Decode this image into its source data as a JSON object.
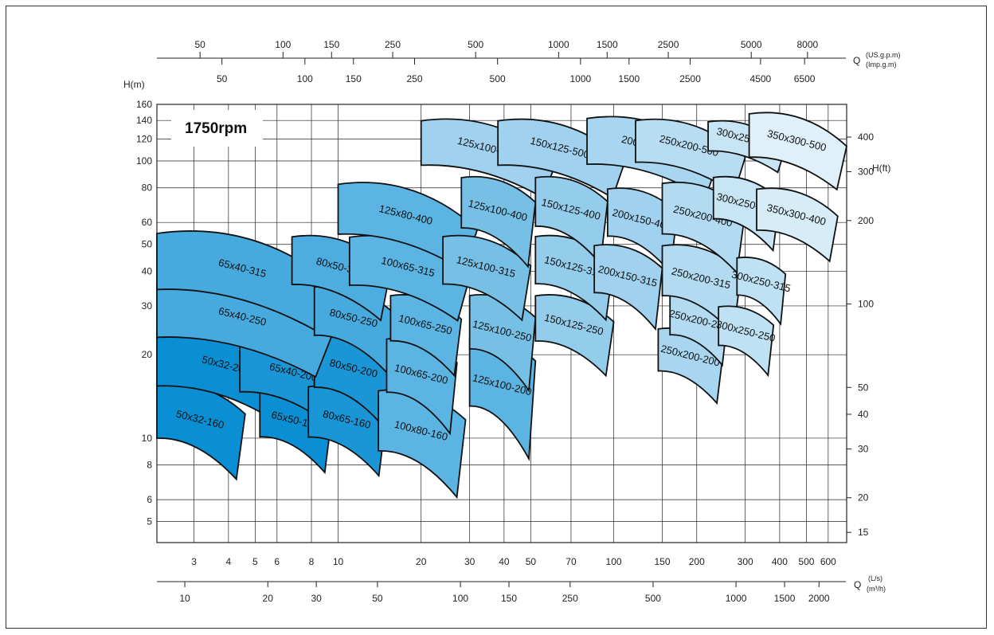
{
  "chart_data": {
    "type": "pump-selection",
    "speed_label": "1750rpm",
    "x_axis": {
      "label": "Q",
      "unit_top": "(L/s)",
      "unit_bottom": "(m³/h)",
      "scale": "log",
      "range_ls": [
        2.2,
        700
      ],
      "ticks_ls": [
        "3",
        "4",
        "5",
        "6",
        "8",
        "10",
        "20",
        "30",
        "40",
        "50",
        "70",
        "100",
        "150",
        "200",
        "300",
        "400",
        "500",
        "600"
      ],
      "ticks_m3h": [
        "10",
        "20",
        "30",
        "50",
        "100",
        "150",
        "250",
        "500",
        "1000",
        "1500",
        "2000"
      ]
    },
    "top_axis": {
      "label": "Q",
      "unit_top": "(US.g.p.m)",
      "unit_bottom": "(Imp.g.m)",
      "ticks_usgpm": [
        "50",
        "100",
        "150",
        "250",
        "500",
        "1000",
        "1500",
        "2500",
        "5000",
        "8000"
      ],
      "ticks_impgm": [
        "50",
        "100",
        "150",
        "250",
        "500",
        "1000",
        "1500",
        "2500",
        "4500",
        "6500"
      ]
    },
    "y_axis": {
      "label": "H(m)",
      "scale": "log",
      "range": [
        4.2,
        160
      ],
      "ticks": [
        "5",
        "6",
        "8",
        "10",
        "20",
        "30",
        "40",
        "50",
        "60",
        "80",
        "100",
        "120",
        "140",
        "160"
      ]
    },
    "y2_axis": {
      "label": "H(ft)",
      "ticks": [
        "15",
        "20",
        "30",
        "40",
        "50",
        "100",
        "200",
        "300",
        "400"
      ]
    },
    "grid": true,
    "models": [
      {
        "name": "50x32-160",
        "q": [
          2.2,
          4.6
        ],
        "h": [
          7.2,
          15.8
        ],
        "color": "#0a8fd4"
      },
      {
        "name": "50x32-200",
        "q": [
          2.2,
          7.2
        ],
        "h": [
          11.2,
          25
        ],
        "color": "#0a8fd4"
      },
      {
        "name": "65x50-160",
        "q": [
          5.2,
          9.5
        ],
        "h": [
          7.6,
          15
        ],
        "color": "#0a8fd4"
      },
      {
        "name": "65x40-200",
        "q": [
          4.4,
          11
        ],
        "h": [
          10.6,
          23.5
        ],
        "color": "#1a95d6"
      },
      {
        "name": "80x65-160",
        "q": [
          7.8,
          15
        ],
        "h": [
          7.4,
          15.5
        ],
        "color": "#1a95d6"
      },
      {
        "name": "80x50-200",
        "q": [
          8.2,
          16
        ],
        "h": [
          10.8,
          24.5
        ],
        "color": "#1a95d6"
      },
      {
        "name": "65x40-250",
        "q": [
          2.2,
          9.6
        ],
        "h": [
          17,
          37
        ],
        "color": "#46aade"
      },
      {
        "name": "65x40-315",
        "q": [
          2.2,
          9.6
        ],
        "h": [
          25,
          56
        ],
        "color": "#46aade"
      },
      {
        "name": "80x50-250",
        "q": [
          8.2,
          16
        ],
        "h": [
          17.5,
          35.5
        ],
        "color": "#46aade"
      },
      {
        "name": "80x50-315",
        "q": [
          6.8,
          15.5
        ],
        "h": [
          27,
          54
        ],
        "color": "#4dade0"
      },
      {
        "name": "100x80-160",
        "q": [
          14,
          29
        ],
        "h": [
          6.2,
          15
        ],
        "color": "#5bb4e2"
      },
      {
        "name": "100x65-200",
        "q": [
          15,
          27
        ],
        "h": [
          10.5,
          23
        ],
        "color": "#5bb4e2"
      },
      {
        "name": "100x65-250",
        "q": [
          15.5,
          28
        ],
        "h": [
          17,
          33
        ],
        "color": "#5bb4e2"
      },
      {
        "name": "100x65-315",
        "q": [
          11,
          30
        ],
        "h": [
          27,
          54
        ],
        "color": "#5bb4e2"
      },
      {
        "name": "125x80-400",
        "q": [
          10,
          32
        ],
        "h": [
          41,
          84
        ],
        "color": "#5bb4e2"
      },
      {
        "name": "125x100-200",
        "q": [
          30,
          52
        ],
        "h": [
          8.5,
          23
        ],
        "color": "#5bb4e2"
      },
      {
        "name": "125x100-250",
        "q": [
          30,
          52
        ],
        "h": [
          15,
          33
        ],
        "color": "#76c0e6"
      },
      {
        "name": "125x100-315",
        "q": [
          24,
          50
        ],
        "h": [
          27,
          54
        ],
        "color": "#76c0e6"
      },
      {
        "name": "125x100-400",
        "q": [
          28,
          52
        ],
        "h": [
          42,
          88
        ],
        "color": "#76c0e6"
      },
      {
        "name": "125x100-500",
        "q": [
          20,
          62
        ],
        "h": [
          75,
          142
        ],
        "color": "#a0d2ef"
      },
      {
        "name": "150x125-250",
        "q": [
          52,
          100
        ],
        "h": [
          17,
          33
        ],
        "color": "#94cdec"
      },
      {
        "name": "150x125-315",
        "q": [
          52,
          100
        ],
        "h": [
          27,
          54
        ],
        "color": "#94cdec"
      },
      {
        "name": "150x125-400",
        "q": [
          52,
          95
        ],
        "h": [
          43,
          88
        ],
        "color": "#94cdec"
      },
      {
        "name": "150x125-500",
        "q": [
          38,
          110
        ],
        "h": [
          75,
          142
        ],
        "color": "#a0d2ef"
      },
      {
        "name": "200x150-315",
        "q": [
          85,
          150
        ],
        "h": [
          25,
          50
        ],
        "color": "#a0d2ef"
      },
      {
        "name": "200x150-400",
        "q": [
          95,
          170
        ],
        "h": [
          40,
          80
        ],
        "color": "#a0d2ef"
      },
      {
        "name": "200x150-500",
        "q": [
          80,
          240
        ],
        "h": [
          75,
          145
        ],
        "color": "#a8d6f0"
      },
      {
        "name": "250x200-200",
        "q": [
          145,
          250
        ],
        "h": [
          13.5,
          25
        ],
        "color": "#a8d6f0"
      },
      {
        "name": "250x200-250",
        "q": [
          160,
          260
        ],
        "h": [
          18.5,
          33
        ],
        "color": "#b2dbf2"
      },
      {
        "name": "250x200-315",
        "q": [
          150,
          290
        ],
        "h": [
          24,
          50
        ],
        "color": "#b2dbf2"
      },
      {
        "name": "250x200-400",
        "q": [
          150,
          300
        ],
        "h": [
          40,
          84
        ],
        "color": "#b2dbf2"
      },
      {
        "name": "250x200-500",
        "q": [
          120,
          300
        ],
        "h": [
          78,
          142
        ],
        "color": "#b8ddf3"
      },
      {
        "name": "300x250-250",
        "q": [
          240,
          380
        ],
        "h": [
          17,
          30
        ],
        "color": "#bfe1f4"
      },
      {
        "name": "300x250-315",
        "q": [
          280,
          420
        ],
        "h": [
          26,
          45
        ],
        "color": "#bfe1f4"
      },
      {
        "name": "300x250-400",
        "q": [
          230,
          400
        ],
        "h": [
          48,
          88
        ],
        "color": "#c8e5f5"
      },
      {
        "name": "300x250-500",
        "q": [
          220,
          420
        ],
        "h": [
          92,
          140
        ],
        "color": "#c8e5f5"
      },
      {
        "name": "350x300-400",
        "q": [
          330,
          650
        ],
        "h": [
          44,
          80
        ],
        "color": "#d6ecf7"
      },
      {
        "name": "350x300-500",
        "q": [
          310,
          700
        ],
        "h": [
          80,
          150
        ],
        "color": "#e0f0f9"
      }
    ]
  }
}
